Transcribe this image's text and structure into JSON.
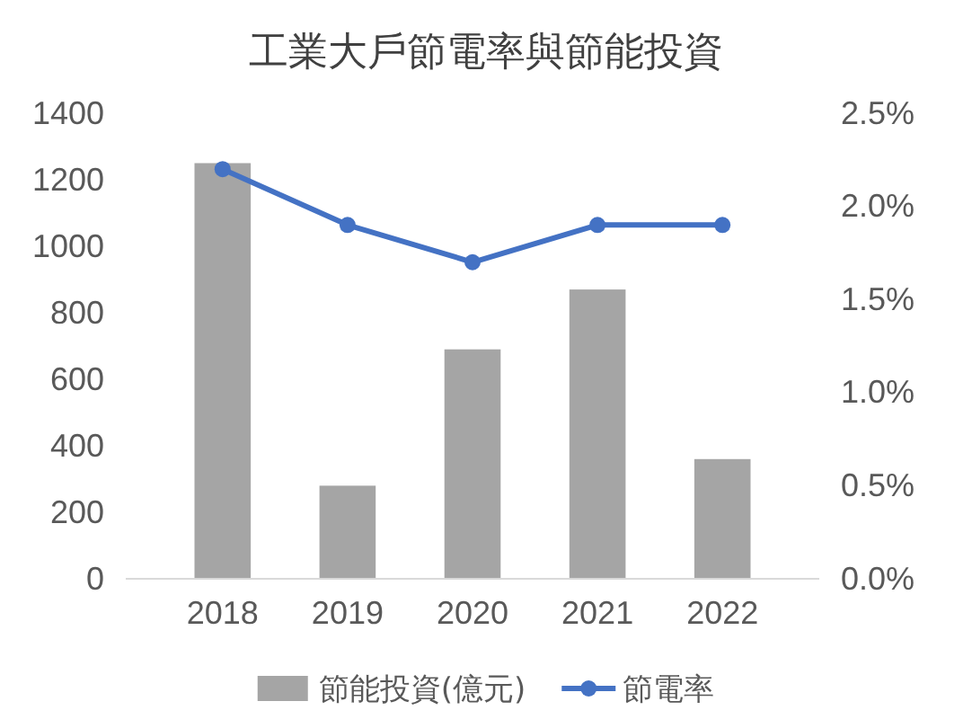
{
  "chart_data": {
    "type": "bar",
    "title": "工業大戶節電率與節能投資",
    "categories": [
      "2018",
      "2019",
      "2020",
      "2021",
      "2022"
    ],
    "series": [
      {
        "name": "節能投資(億元)",
        "color": "#a5a5a5",
        "values": [
          1250,
          280,
          690,
          870,
          360
        ]
      },
      {
        "name": "節電率",
        "type": "line",
        "axis": "y2",
        "color": "#4472c4",
        "values": [
          2.2,
          1.9,
          1.7,
          1.9,
          1.9
        ]
      }
    ],
    "ylim": [
      0,
      1400
    ],
    "yticks": [
      0,
      200,
      400,
      600,
      800,
      1000,
      1200,
      1400
    ],
    "y2lim": [
      0,
      2.5
    ],
    "y2ticks": [
      {
        "value": 0,
        "label": "0.0%"
      },
      {
        "value": 0.5,
        "label": "0.5%"
      },
      {
        "value": 1,
        "label": "1.0%"
      },
      {
        "value": 1.5,
        "label": "1.5%"
      },
      {
        "value": 2,
        "label": "2.0%"
      },
      {
        "value": 2.5,
        "label": "2.5%"
      }
    ],
    "grid": false,
    "legend": "bottom",
    "marker": "circle",
    "line_style": "solid"
  }
}
